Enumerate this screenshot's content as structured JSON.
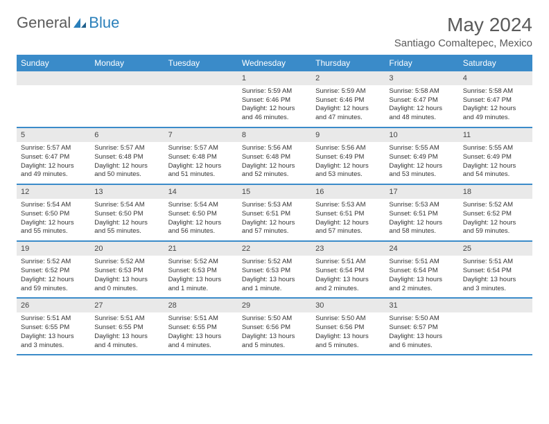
{
  "brand": {
    "part1": "General",
    "part2": "Blue"
  },
  "title": "May 2024",
  "location": "Santiago Comaltepec, Mexico",
  "colors": {
    "header_bg": "#3a8bc9",
    "header_text": "#ffffff",
    "daynum_bg": "#e9e9e9",
    "text": "#333333",
    "rule": "#3a8bc9",
    "brand_gray": "#5a5a5a",
    "brand_blue": "#2a7fba",
    "page_bg": "#ffffff"
  },
  "dayNames": [
    "Sunday",
    "Monday",
    "Tuesday",
    "Wednesday",
    "Thursday",
    "Friday",
    "Saturday"
  ],
  "weeks": [
    [
      null,
      null,
      null,
      {
        "n": "1",
        "sr": "5:59 AM",
        "ss": "6:46 PM",
        "dl": "12 hours and 46 minutes."
      },
      {
        "n": "2",
        "sr": "5:59 AM",
        "ss": "6:46 PM",
        "dl": "12 hours and 47 minutes."
      },
      {
        "n": "3",
        "sr": "5:58 AM",
        "ss": "6:47 PM",
        "dl": "12 hours and 48 minutes."
      },
      {
        "n": "4",
        "sr": "5:58 AM",
        "ss": "6:47 PM",
        "dl": "12 hours and 49 minutes."
      }
    ],
    [
      {
        "n": "5",
        "sr": "5:57 AM",
        "ss": "6:47 PM",
        "dl": "12 hours and 49 minutes."
      },
      {
        "n": "6",
        "sr": "5:57 AM",
        "ss": "6:48 PM",
        "dl": "12 hours and 50 minutes."
      },
      {
        "n": "7",
        "sr": "5:57 AM",
        "ss": "6:48 PM",
        "dl": "12 hours and 51 minutes."
      },
      {
        "n": "8",
        "sr": "5:56 AM",
        "ss": "6:48 PM",
        "dl": "12 hours and 52 minutes."
      },
      {
        "n": "9",
        "sr": "5:56 AM",
        "ss": "6:49 PM",
        "dl": "12 hours and 53 minutes."
      },
      {
        "n": "10",
        "sr": "5:55 AM",
        "ss": "6:49 PM",
        "dl": "12 hours and 53 minutes."
      },
      {
        "n": "11",
        "sr": "5:55 AM",
        "ss": "6:49 PM",
        "dl": "12 hours and 54 minutes."
      }
    ],
    [
      {
        "n": "12",
        "sr": "5:54 AM",
        "ss": "6:50 PM",
        "dl": "12 hours and 55 minutes."
      },
      {
        "n": "13",
        "sr": "5:54 AM",
        "ss": "6:50 PM",
        "dl": "12 hours and 55 minutes."
      },
      {
        "n": "14",
        "sr": "5:54 AM",
        "ss": "6:50 PM",
        "dl": "12 hours and 56 minutes."
      },
      {
        "n": "15",
        "sr": "5:53 AM",
        "ss": "6:51 PM",
        "dl": "12 hours and 57 minutes."
      },
      {
        "n": "16",
        "sr": "5:53 AM",
        "ss": "6:51 PM",
        "dl": "12 hours and 57 minutes."
      },
      {
        "n": "17",
        "sr": "5:53 AM",
        "ss": "6:51 PM",
        "dl": "12 hours and 58 minutes."
      },
      {
        "n": "18",
        "sr": "5:52 AM",
        "ss": "6:52 PM",
        "dl": "12 hours and 59 minutes."
      }
    ],
    [
      {
        "n": "19",
        "sr": "5:52 AM",
        "ss": "6:52 PM",
        "dl": "12 hours and 59 minutes."
      },
      {
        "n": "20",
        "sr": "5:52 AM",
        "ss": "6:53 PM",
        "dl": "13 hours and 0 minutes."
      },
      {
        "n": "21",
        "sr": "5:52 AM",
        "ss": "6:53 PM",
        "dl": "13 hours and 1 minute."
      },
      {
        "n": "22",
        "sr": "5:52 AM",
        "ss": "6:53 PM",
        "dl": "13 hours and 1 minute."
      },
      {
        "n": "23",
        "sr": "5:51 AM",
        "ss": "6:54 PM",
        "dl": "13 hours and 2 minutes."
      },
      {
        "n": "24",
        "sr": "5:51 AM",
        "ss": "6:54 PM",
        "dl": "13 hours and 2 minutes."
      },
      {
        "n": "25",
        "sr": "5:51 AM",
        "ss": "6:54 PM",
        "dl": "13 hours and 3 minutes."
      }
    ],
    [
      {
        "n": "26",
        "sr": "5:51 AM",
        "ss": "6:55 PM",
        "dl": "13 hours and 3 minutes."
      },
      {
        "n": "27",
        "sr": "5:51 AM",
        "ss": "6:55 PM",
        "dl": "13 hours and 4 minutes."
      },
      {
        "n": "28",
        "sr": "5:51 AM",
        "ss": "6:55 PM",
        "dl": "13 hours and 4 minutes."
      },
      {
        "n": "29",
        "sr": "5:50 AM",
        "ss": "6:56 PM",
        "dl": "13 hours and 5 minutes."
      },
      {
        "n": "30",
        "sr": "5:50 AM",
        "ss": "6:56 PM",
        "dl": "13 hours and 5 minutes."
      },
      {
        "n": "31",
        "sr": "5:50 AM",
        "ss": "6:57 PM",
        "dl": "13 hours and 6 minutes."
      },
      null
    ]
  ],
  "labels": {
    "sunrise": "Sunrise:",
    "sunset": "Sunset:",
    "daylight": "Daylight:"
  }
}
